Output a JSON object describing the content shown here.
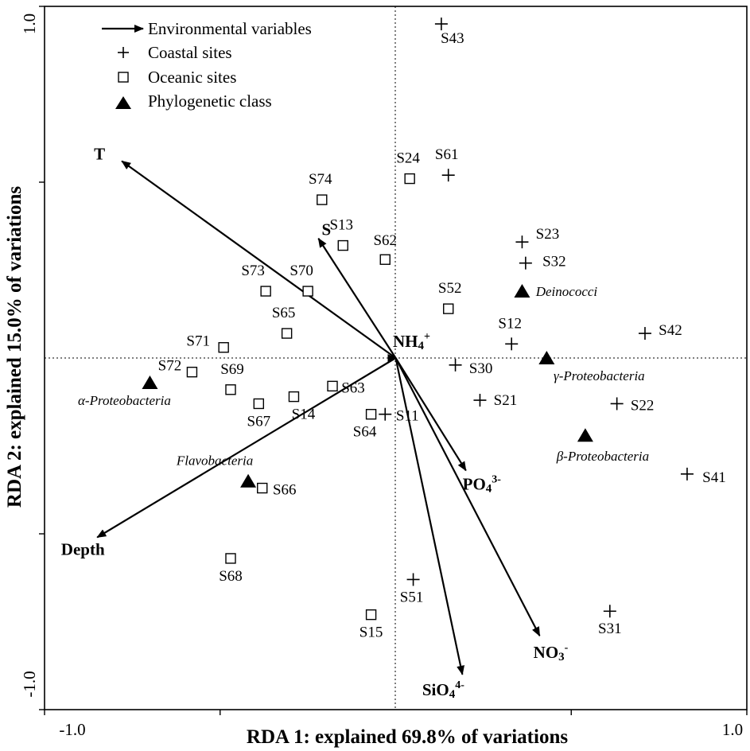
{
  "chart_data": {
    "type": "scatter",
    "subtype": "RDA biplot",
    "xlabel": "RDA 1: explained 69.8% of variations",
    "ylabel": "RDA 2: explained 15.0% of variations",
    "xlim": [
      -1.0,
      1.0
    ],
    "ylim": [
      -1.0,
      1.0
    ],
    "x_tick_labels": [
      {
        "value": -1.0,
        "label": "-1.0"
      },
      {
        "value": 1.0,
        "label": "1.0"
      }
    ],
    "y_tick_labels": [
      {
        "value": 1.0,
        "label": "1.0"
      },
      {
        "value": -1.0,
        "label": "-1.0"
      }
    ],
    "y_minor_ticks": [
      0.5,
      -0.5
    ],
    "x_minor_ticks": [
      -0.5,
      0.5
    ],
    "reference_lines": {
      "x": 0,
      "y": 0,
      "style": "dotted"
    },
    "legend": {
      "placement": "top-left",
      "entries": [
        {
          "symbol": "arrow",
          "label": "Environmental variables"
        },
        {
          "symbol": "plus",
          "label": "Coastal sites"
        },
        {
          "symbol": "square",
          "label": "Oceanic sites"
        },
        {
          "symbol": "triangle",
          "label": "Phylogenetic class"
        }
      ]
    },
    "environmental_vectors": [
      {
        "name": "T",
        "label": "T",
        "sup": "",
        "x": -0.78,
        "y": 0.56
      },
      {
        "name": "S",
        "label": "S",
        "sup": "",
        "x": -0.22,
        "y": 0.34
      },
      {
        "name": "NH4",
        "label": "NH4",
        "sup": "+",
        "x": 0.0,
        "y": 0.0
      },
      {
        "name": "Depth",
        "label": "Depth",
        "sup": "",
        "x": -0.85,
        "y": -0.51
      },
      {
        "name": "PO4",
        "label": "PO4",
        "sup": "3-",
        "x": 0.2,
        "y": -0.32
      },
      {
        "name": "SiO4",
        "label": "SiO4",
        "sup": "4-",
        "x": 0.19,
        "y": -0.9
      },
      {
        "name": "NO3",
        "label": "NO3",
        "sup": "-",
        "x": 0.41,
        "y": -0.79
      }
    ],
    "coastal_sites": [
      {
        "name": "S43",
        "x": 0.13,
        "y": 0.95
      },
      {
        "name": "S61",
        "x": 0.15,
        "y": 0.52
      },
      {
        "name": "S23",
        "x": 0.36,
        "y": 0.33
      },
      {
        "name": "S32",
        "x": 0.37,
        "y": 0.27
      },
      {
        "name": "S12",
        "x": 0.33,
        "y": 0.04
      },
      {
        "name": "S42",
        "x": 0.71,
        "y": 0.07
      },
      {
        "name": "S30",
        "x": 0.17,
        "y": -0.02
      },
      {
        "name": "S21",
        "x": 0.24,
        "y": -0.12
      },
      {
        "name": "S22",
        "x": 0.63,
        "y": -0.13
      },
      {
        "name": "S11",
        "x": -0.03,
        "y": -0.16
      },
      {
        "name": "S41",
        "x": 0.83,
        "y": -0.33
      },
      {
        "name": "S51",
        "x": 0.05,
        "y": -0.63
      },
      {
        "name": "S31",
        "x": 0.61,
        "y": -0.72
      }
    ],
    "oceanic_sites": [
      {
        "name": "S24",
        "x": 0.04,
        "y": 0.51
      },
      {
        "name": "S74",
        "x": -0.21,
        "y": 0.45
      },
      {
        "name": "S13",
        "x": -0.15,
        "y": 0.32
      },
      {
        "name": "S62",
        "x": -0.03,
        "y": 0.28
      },
      {
        "name": "S73",
        "x": -0.37,
        "y": 0.19
      },
      {
        "name": "S70",
        "x": -0.25,
        "y": 0.19
      },
      {
        "name": "S52",
        "x": 0.15,
        "y": 0.14
      },
      {
        "name": "S65",
        "x": -0.31,
        "y": 0.07
      },
      {
        "name": "S71",
        "x": -0.49,
        "y": 0.03
      },
      {
        "name": "S72",
        "x": -0.58,
        "y": -0.04
      },
      {
        "name": "S69",
        "x": -0.47,
        "y": -0.09
      },
      {
        "name": "S67",
        "x": -0.39,
        "y": -0.13
      },
      {
        "name": "S14",
        "x": -0.29,
        "y": -0.11
      },
      {
        "name": "S63",
        "x": -0.18,
        "y": -0.08
      },
      {
        "name": "S64",
        "x": -0.07,
        "y": -0.16
      },
      {
        "name": "S66",
        "x": -0.38,
        "y": -0.37
      },
      {
        "name": "S68",
        "x": -0.47,
        "y": -0.57
      },
      {
        "name": "S15",
        "x": -0.07,
        "y": -0.73
      }
    ],
    "phylogenetic_classes": [
      {
        "name": "Deinococci",
        "label": "Deinococci",
        "x": 0.36,
        "y": 0.19
      },
      {
        "name": "gamma-Proteobacteria",
        "label": "γ-Proteobacteria",
        "x": 0.43,
        "y": 0.0
      },
      {
        "name": "alpha-Proteobacteria",
        "label": "α-Proteobacteria",
        "x": -0.7,
        "y": -0.07
      },
      {
        "name": "beta-Proteobacteria",
        "label": "β-Proteobacteria",
        "x": 0.54,
        "y": -0.22
      },
      {
        "name": "Flavobacteria",
        "label": "Flavobacteria",
        "x": -0.42,
        "y": -0.35
      }
    ]
  }
}
